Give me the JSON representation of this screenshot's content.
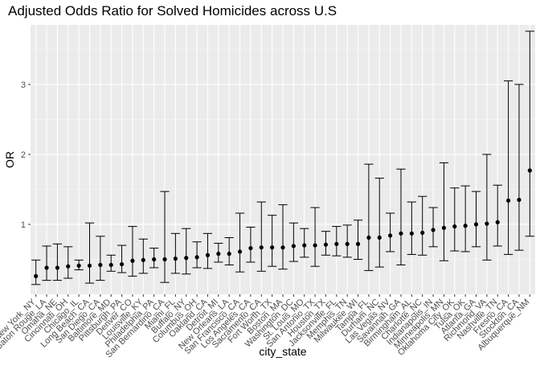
{
  "chart_data": {
    "type": "scatter",
    "title": "Adjusted Odds Ratio for Solved Homicides across U.S",
    "xlabel": "city_state",
    "ylabel": "OR",
    "ylim": [
      0.0,
      3.85
    ],
    "yticks": [
      1,
      2,
      3
    ],
    "grid": true,
    "categories": [
      "New York_NY",
      "Baton Rouge_LA",
      "Omaha_NE",
      "Cincinnati_OH",
      "Chicago_IL",
      "Long Beach_CA",
      "San Diego_CA",
      "Baltimore_MD",
      "Pittsburgh_PA",
      "Denver_CO",
      "Louisville_KY",
      "Philadelphia_PA",
      "San Bernardino_CA",
      "Miami_FL",
      "Buffalo_NY",
      "Columbus_OH",
      "Oakland_CA",
      "Detroit_MI",
      "New Orleans_LA",
      "San Francisco_CA",
      "Los Angeles_CA",
      "Sacramento_CA",
      "Fort Worth_TX",
      "Boston_MA",
      "Washington_DC",
      "St. Louis_MO",
      "San Antonio_TX",
      "Houston_TX",
      "Jacksonville_FL",
      "Memphis_TN",
      "Milwaukee_WI",
      "Tampa_FL",
      "Durham_NC",
      "Las Vegas_NV",
      "Savannah_GA",
      "Birmingham_AL",
      "Charlotte_NC",
      "Indianapolis_IN",
      "Minneapolis_MN",
      "Oklahoma City_OK",
      "Tulsa_OK",
      "Atlanta_GA",
      "Richmond_VA",
      "Nashville_TN",
      "Fresno_CA",
      "Stockton_CA",
      "Albuquerque_NM"
    ],
    "series": [
      {
        "estimate": [
          0.26,
          0.38,
          0.38,
          0.4,
          0.41,
          0.41,
          0.42,
          0.42,
          0.43,
          0.48,
          0.49,
          0.5,
          0.5,
          0.51,
          0.52,
          0.53,
          0.56,
          0.58,
          0.58,
          0.61,
          0.66,
          0.67,
          0.67,
          0.67,
          0.69,
          0.7,
          0.7,
          0.71,
          0.72,
          0.72,
          0.72,
          0.81,
          0.81,
          0.84,
          0.87,
          0.87,
          0.88,
          0.92,
          0.95,
          0.97,
          0.98,
          1.0,
          1.01,
          1.03,
          1.34,
          1.35,
          1.77
        ],
        "conf_low": [
          0.14,
          0.2,
          0.2,
          0.23,
          0.35,
          0.16,
          0.2,
          0.33,
          0.31,
          0.26,
          0.3,
          0.38,
          0.17,
          0.3,
          0.29,
          0.38,
          0.37,
          0.46,
          0.42,
          0.32,
          0.46,
          0.33,
          0.4,
          0.36,
          0.47,
          0.53,
          0.4,
          0.56,
          0.55,
          0.53,
          0.5,
          0.34,
          0.39,
          0.61,
          0.42,
          0.57,
          0.56,
          0.68,
          0.48,
          0.62,
          0.61,
          0.68,
          0.49,
          0.69,
          0.57,
          0.63,
          0.83
        ],
        "conf_high": [
          0.49,
          0.69,
          0.72,
          0.68,
          0.49,
          1.02,
          0.83,
          0.56,
          0.7,
          0.97,
          0.79,
          0.66,
          1.47,
          0.87,
          0.94,
          0.75,
          0.87,
          0.73,
          0.81,
          1.16,
          0.96,
          1.32,
          1.13,
          1.28,
          1.02,
          0.94,
          1.24,
          0.9,
          0.97,
          0.99,
          1.06,
          1.86,
          1.66,
          1.16,
          1.79,
          1.32,
          1.4,
          1.24,
          1.88,
          1.52,
          1.55,
          1.47,
          2.0,
          1.56,
          3.05,
          3.0,
          3.76
        ]
      }
    ]
  }
}
